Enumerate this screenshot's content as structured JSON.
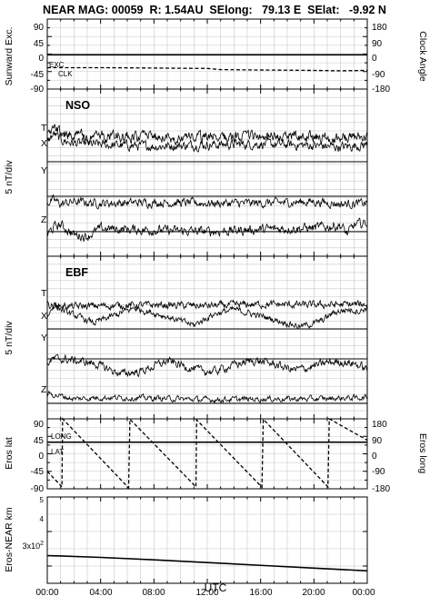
{
  "header": {
    "title": "NEAR MAG: 00059  R: 1.54AU  SElong:   79.13 E  SElat:   -9.92 N"
  },
  "x_axis": {
    "label": "UTC",
    "tick_labels": [
      "00:00",
      "04:00",
      "08:00",
      "12:00",
      "16:00",
      "20:00",
      "00:00"
    ],
    "range_hours": [
      0,
      24
    ],
    "tick_hours": [
      0,
      4,
      8,
      12,
      16,
      20,
      24
    ]
  },
  "panels": {
    "sunward": {
      "left_label": "Sunward Exc.",
      "right_label": "Clock Angle",
      "left_ticks": [
        "90",
        "45",
        "0",
        "-45",
        "-90"
      ],
      "right_ticks": [
        "180",
        "90",
        "0",
        "-90",
        "-180"
      ],
      "exc_label": "EXC",
      "clk_label": "CLK"
    },
    "nso": {
      "title": "NSO",
      "ylabel": "5 nT/div",
      "component_labels": [
        "T",
        "X",
        "Y",
        "Z"
      ]
    },
    "ebf": {
      "title": "EBF",
      "ylabel": "5 nT/div",
      "component_labels": [
        "T",
        "X",
        "Y",
        "Z"
      ]
    },
    "eros": {
      "left_label": "Eros lat",
      "right_label": "Eros long",
      "left_ticks": [
        "90",
        "45",
        "0",
        "-45",
        "-90"
      ],
      "right_ticks": [
        "180",
        "90",
        "0",
        "-90",
        "-180"
      ],
      "long_label": "LONG",
      "lat_label": "LAT"
    },
    "range": {
      "left_label": "Eros-NEAR km",
      "tick_5": "5",
      "tick_4": "4",
      "tick_3_base": "3x10",
      "tick_3_exp": "2"
    }
  },
  "chart_data": [
    {
      "type": "line",
      "title": "",
      "xlabel": "UTC",
      "ylabel": "Sunward Exc.",
      "y2label": "Clock Angle",
      "ylim": [
        -90,
        90
      ],
      "y2lim": [
        -180,
        180
      ],
      "grid": true,
      "series": [
        {
          "name": "EXC",
          "style": "solid",
          "x": [
            0,
            24
          ],
          "y": [
            -2,
            -2
          ]
        },
        {
          "name": "CLK",
          "style": "dashed",
          "axis": "right",
          "x": [
            0,
            4,
            8,
            12,
            13,
            16,
            20,
            22,
            24
          ],
          "y": [
            -70,
            -70,
            -72,
            -74,
            -80,
            -82,
            -84,
            -86,
            -84
          ]
        }
      ]
    },
    {
      "type": "line",
      "title": "NSO",
      "ylabel": "5 nT/div",
      "grid": true,
      "series": [
        {
          "name": "T",
          "x": [
            0,
            0.5,
            1,
            2,
            4,
            8,
            12,
            16,
            20,
            22,
            24
          ],
          "y": [
            3.5,
            4.5,
            3.8,
            3.3,
            3.3,
            3.2,
            3.1,
            3.3,
            3.2,
            3.0,
            3.3
          ]
        },
        {
          "name": "X",
          "x": [
            0,
            0.5,
            1,
            2,
            4,
            8,
            12,
            16,
            20,
            22,
            24
          ],
          "y": [
            2.6,
            3.6,
            2.8,
            2.4,
            2.2,
            2.0,
            2.2,
            2.3,
            2.1,
            1.9,
            2.2
          ]
        },
        {
          "name": "Y",
          "x": [
            0,
            0.5,
            1,
            2,
            4,
            8,
            12,
            16,
            20,
            22,
            24
          ],
          "y": [
            -0.8,
            -0.5,
            -1.0,
            -0.7,
            -0.9,
            -0.8,
            -0.9,
            -0.9,
            -0.7,
            -1.0,
            -0.9
          ]
        },
        {
          "name": "Z",
          "x": [
            0,
            0.5,
            1,
            2,
            3,
            4,
            6,
            8,
            12,
            16,
            20,
            22,
            22.5,
            23,
            24
          ],
          "y": [
            -0.4,
            0.6,
            0.9,
            -0.4,
            -0.6,
            0.4,
            0.3,
            0.2,
            0.0,
            0.3,
            0.5,
            0.8,
            -0.3,
            0.8,
            1.2
          ]
        }
      ]
    },
    {
      "type": "line",
      "title": "EBF",
      "ylabel": "5 nT/div",
      "grid": true,
      "series": [
        {
          "name": "T",
          "x": [
            0,
            2,
            4,
            8,
            12,
            16,
            20,
            24
          ],
          "y": [
            3.2,
            3.0,
            3.1,
            3.2,
            3.1,
            3.3,
            3.2,
            3.3
          ]
        },
        {
          "name": "X",
          "x": [
            0,
            0.5,
            1.5,
            3.5,
            5.5,
            6.5,
            8.5,
            11,
            12.5,
            14,
            16.5,
            19,
            20.5,
            21.5,
            22.5,
            23.5,
            24
          ],
          "y": [
            1.6,
            3.2,
            2.2,
            0.8,
            2.1,
            2.8,
            1.9,
            0.5,
            2.0,
            2.6,
            1.5,
            0.3,
            1.0,
            2.2,
            2.6,
            2.4,
            2.9
          ]
        },
        {
          "name": "Y",
          "x": [
            0,
            0.5,
            1.5,
            3.5,
            5.5,
            7,
            9,
            11.5,
            12.5,
            14,
            15.5,
            17,
            18.5,
            19.5,
            21,
            22,
            23,
            24
          ],
          "y": [
            -0.5,
            0.0,
            -0.1,
            -0.6,
            -2.0,
            -1.7,
            -0.3,
            -1.6,
            -1.7,
            -0.8,
            -0.2,
            -0.7,
            -1.5,
            -1.2,
            -0.5,
            -0.4,
            -0.6,
            -1.4
          ]
        },
        {
          "name": "Z",
          "x": [
            0,
            1,
            2,
            4,
            8,
            12,
            16,
            20,
            24
          ],
          "y": [
            1.3,
            1.0,
            0.6,
            0.8,
            0.7,
            0.5,
            0.6,
            0.6,
            0.8
          ]
        }
      ]
    },
    {
      "type": "line",
      "title": "",
      "ylabel": "Eros lat",
      "y2label": "Eros long",
      "ylim": [
        -90,
        90
      ],
      "y2lim": [
        -180,
        180
      ],
      "grid": true,
      "series": [
        {
          "name": "LAT",
          "style": "solid",
          "x": [
            0,
            24
          ],
          "y": [
            30,
            30
          ]
        },
        {
          "name": "LONG",
          "style": "dashed",
          "axis": "right",
          "x": [
            0,
            1.1,
            1.15,
            6.1,
            6.2,
            11.15,
            11.2,
            16.1,
            16.2,
            21.05,
            21.15,
            24
          ],
          "y": [
            -90,
            -170,
            180,
            -175,
            178,
            -170,
            175,
            -172,
            178,
            -170,
            180,
            70
          ]
        }
      ]
    },
    {
      "type": "line",
      "title": "",
      "ylabel": "Eros-NEAR km",
      "ylim": [
        250,
        500
      ],
      "grid": true,
      "series": [
        {
          "name": "",
          "x": [
            0,
            1,
            4,
            8,
            12,
            16,
            20,
            24
          ],
          "y": [
            330,
            329,
            325,
            318,
            310,
            302,
            294,
            286
          ]
        }
      ]
    }
  ]
}
